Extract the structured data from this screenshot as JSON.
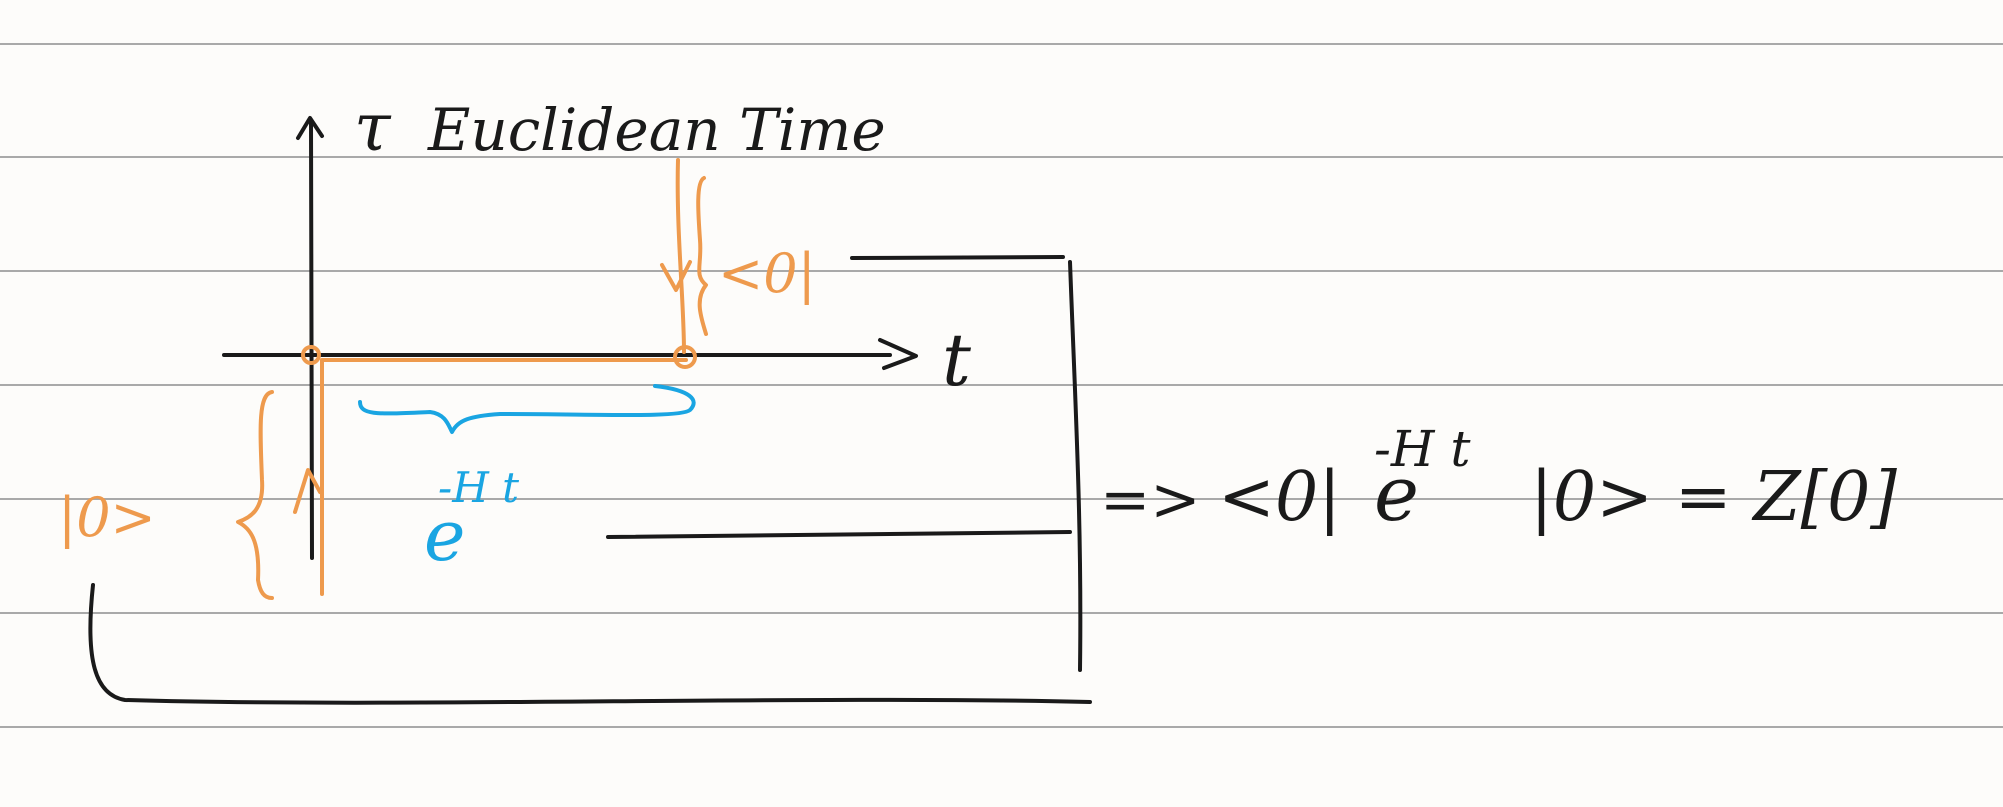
{
  "colors": {
    "paper": "#fdfcfa",
    "ruling": "#a9a9a9",
    "ink": "#1a1a1a",
    "orange": "#ee9a4d",
    "blue": "#1aa5e2"
  },
  "vertical_axis_label": "τ",
  "vertical_axis_title": "Euclidean Time",
  "horizontal_axis_label": "t",
  "bra_label": "<0|",
  "ket_label": "|0>",
  "operator": {
    "base": "e",
    "exponent": "-H t"
  },
  "result": {
    "arrow": "=>",
    "bra": "<0|",
    "base": "e",
    "exponent": "-H t",
    "tail": "|0> = Z[0]"
  }
}
